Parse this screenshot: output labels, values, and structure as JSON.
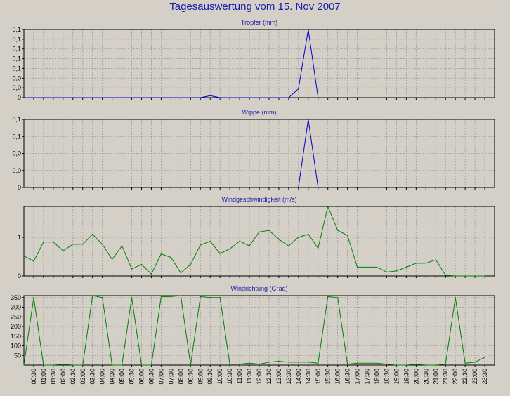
{
  "title": "Tagesauswertung vom 15. Nov 2007",
  "colors": {
    "blue": "#0000cc",
    "green": "#008000",
    "title": "#1a1aa8",
    "background": "#d4d0c8",
    "grid": "#9a9a9a"
  },
  "x_labels": [
    "00:30",
    "01:00",
    "01:30",
    "02:00",
    "02:30",
    "03:00",
    "03:30",
    "04:00",
    "04:30",
    "05:00",
    "05:30",
    "06:00",
    "06:30",
    "07:00",
    "07:30",
    "08:00",
    "08:30",
    "09:00",
    "09:30",
    "10:00",
    "10:30",
    "11:00",
    "11:30",
    "12:00",
    "12:30",
    "13:00",
    "13:30",
    "14:00",
    "14:30",
    "15:00",
    "15:30",
    "16:00",
    "16:30",
    "17:00",
    "17:30",
    "18:00",
    "18:30",
    "19:00",
    "19:30",
    "20:00",
    "20:30",
    "21:00",
    "21:30",
    "22:00",
    "22:30",
    "23:00",
    "23:30"
  ],
  "chart_data": [
    {
      "type": "line",
      "title": "Tropfer (mm)",
      "ylim": [
        0,
        0.14
      ],
      "y_ticks": [
        0,
        0.02,
        0.04,
        0.06,
        0.08,
        0.1,
        0.12,
        0.14
      ],
      "y_tick_labels": [
        "0",
        "0,0",
        "0,0",
        "0,1",
        "0,1",
        "0,1",
        "0,1",
        "0,1"
      ],
      "color": "blue",
      "x": [
        "00:00",
        "00:30",
        "01:00",
        "01:30",
        "02:00",
        "02:30",
        "03:00",
        "03:30",
        "04:00",
        "04:30",
        "05:00",
        "05:30",
        "06:00",
        "06:30",
        "07:00",
        "07:30",
        "08:00",
        "08:30",
        "09:00",
        "09:30",
        "10:00",
        "10:30",
        "11:00",
        "11:30",
        "12:00",
        "12:30",
        "13:00",
        "13:30",
        "14:00",
        "14:30",
        "15:00"
      ],
      "values": [
        0,
        0,
        0,
        0,
        0,
        0,
        0,
        0,
        0,
        0,
        0,
        0,
        0,
        0,
        0,
        0,
        0,
        0,
        0,
        0.004,
        0,
        0,
        0,
        0,
        0,
        0,
        0,
        0,
        0.018,
        0.14,
        0
      ]
    },
    {
      "type": "line",
      "title": "Wippe (mm)",
      "ylim": [
        0,
        0.14
      ],
      "y_ticks": [
        0,
        0.035,
        0.07,
        0.105,
        0.14
      ],
      "y_tick_labels": [
        "0",
        "0,0",
        "0,0",
        "0,1",
        "0,1"
      ],
      "color": "blue",
      "x": [
        "14:00",
        "14:30",
        "15:00"
      ],
      "values": [
        0,
        0.14,
        0
      ]
    },
    {
      "type": "line",
      "title": "Windgeschwindigkeit (m/s)",
      "ylim": [
        0,
        1.8
      ],
      "y_ticks": [
        0,
        1
      ],
      "y_tick_labels": [
        "0",
        "1"
      ],
      "color": "green",
      "x": [
        "00:00",
        "00:30",
        "01:00",
        "01:30",
        "02:00",
        "02:30",
        "03:00",
        "03:30",
        "04:00",
        "04:30",
        "05:00",
        "05:30",
        "06:00",
        "06:30",
        "07:00",
        "07:30",
        "08:00",
        "08:30",
        "09:00",
        "09:30",
        "10:00",
        "10:30",
        "11:00",
        "11:30",
        "12:00",
        "12:30",
        "13:00",
        "13:30",
        "14:00",
        "14:30",
        "15:00",
        "15:30",
        "16:00",
        "16:30",
        "17:00",
        "17:30",
        "18:00",
        "18:30",
        "19:00",
        "19:30",
        "20:00",
        "20:30",
        "21:00",
        "21:30",
        "22:00",
        "22:30",
        "23:00",
        "23:30"
      ],
      "values": [
        0.52,
        0.38,
        0.88,
        0.88,
        0.65,
        0.82,
        0.82,
        1.08,
        0.82,
        0.43,
        0.78,
        0.18,
        0.3,
        0.05,
        0.57,
        0.48,
        0.08,
        0.3,
        0.8,
        0.9,
        0.58,
        0.7,
        0.9,
        0.78,
        1.14,
        1.18,
        0.95,
        0.78,
        1.0,
        1.08,
        0.72,
        1.8,
        1.18,
        1.05,
        0.23,
        0.23,
        0.23,
        0.1,
        0.13,
        0.23,
        0.33,
        0.33,
        0.42,
        0.02,
        0,
        0,
        0,
        0
      ]
    },
    {
      "type": "line",
      "title": "Windrichtung (Grad)",
      "ylim": [
        0,
        360
      ],
      "y_ticks": [
        50,
        100,
        150,
        200,
        250,
        300,
        350
      ],
      "y_tick_labels": [
        "50",
        "100",
        "150",
        "200",
        "250",
        "300",
        "350"
      ],
      "color": "green",
      "x": [
        "00:00",
        "00:30",
        "01:00",
        "01:30",
        "02:00",
        "02:30",
        "03:00",
        "03:30",
        "04:00",
        "04:30",
        "05:00",
        "05:30",
        "06:00",
        "06:30",
        "07:00",
        "07:30",
        "08:00",
        "08:30",
        "09:00",
        "09:30",
        "10:00",
        "10:30",
        "11:00",
        "11:30",
        "12:00",
        "12:30",
        "13:00",
        "13:30",
        "14:00",
        "14:30",
        "15:00",
        "15:30",
        "16:00",
        "16:30",
        "17:00",
        "17:30",
        "18:00",
        "18:30",
        "19:00",
        "19:30",
        "20:00",
        "20:30",
        "21:00",
        "21:30",
        "22:00",
        "22:30",
        "23:00",
        "23:30"
      ],
      "values": [
        0,
        350,
        0,
        0,
        5,
        0,
        0,
        360,
        350,
        0,
        0,
        350,
        0,
        0,
        355,
        355,
        360,
        0,
        355,
        350,
        350,
        5,
        5,
        10,
        5,
        15,
        20,
        15,
        15,
        15,
        10,
        355,
        350,
        5,
        10,
        10,
        10,
        5,
        0,
        0,
        5,
        0,
        0,
        5,
        350,
        10,
        15,
        40
      ]
    }
  ]
}
